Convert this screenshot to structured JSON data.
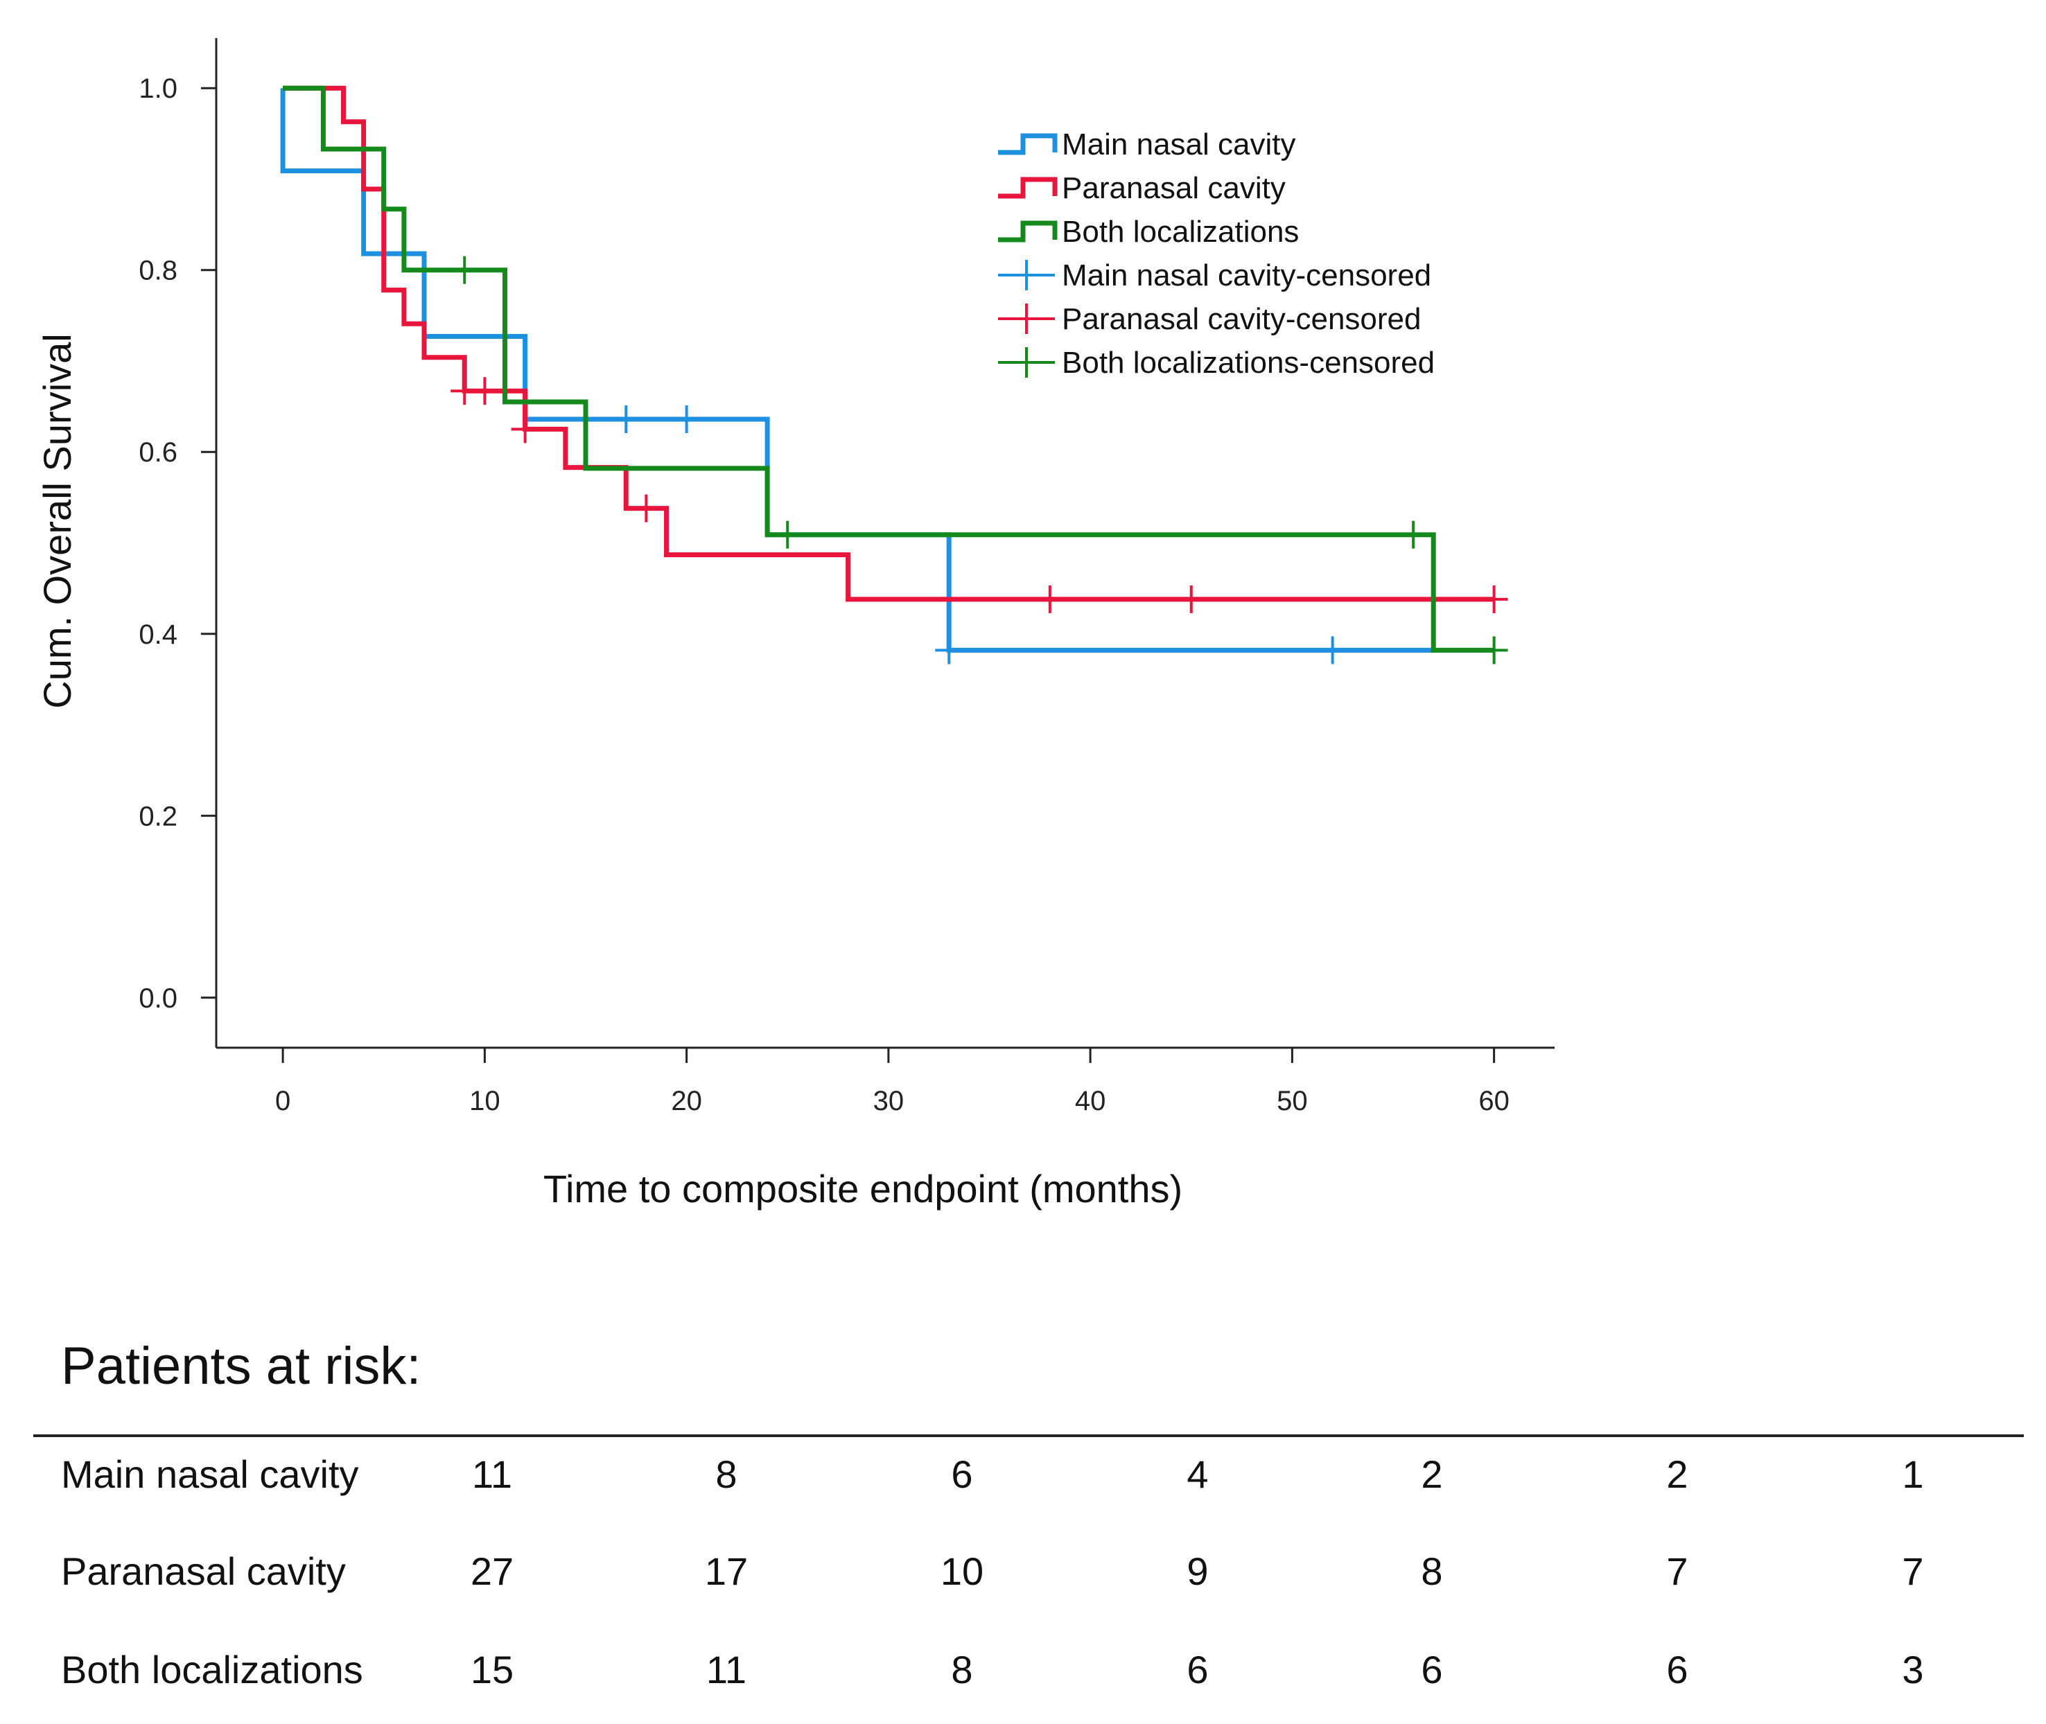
{
  "chart_data": {
    "type": "line",
    "style": "kaplan-meier step",
    "xlabel": "Time to composite endpoint (months)",
    "ylabel": "Cum. Overall Survival",
    "xlim": [
      -3.3,
      63
    ],
    "ylim": [
      -0.055,
      1.055
    ],
    "x_ticks": [
      "0",
      "10",
      "20",
      "30",
      "40",
      "50",
      "60"
    ],
    "y_ticks": [
      "0.0",
      "0.2",
      "0.4",
      "0.6",
      "0.8",
      "1.0"
    ],
    "grid": false,
    "legend_position": "top-right",
    "series": [
      {
        "name": "Main nasal cavity",
        "color": "#1e90e0",
        "steps": [
          [
            0,
            1.0
          ],
          [
            0,
            0.909
          ],
          [
            4,
            0.909
          ],
          [
            4,
            0.818
          ],
          [
            7,
            0.818
          ],
          [
            7,
            0.727
          ],
          [
            12,
            0.727
          ],
          [
            12,
            0.636
          ],
          [
            24,
            0.636
          ],
          [
            24,
            0.509
          ],
          [
            33,
            0.509
          ],
          [
            33,
            0.382
          ],
          [
            57,
            0.382
          ]
        ],
        "censored": [
          [
            17,
            0.636
          ],
          [
            20,
            0.636
          ],
          [
            33,
            0.382
          ],
          [
            52,
            0.382
          ]
        ]
      },
      {
        "name": "Paranasal cavity",
        "color": "#e8163c",
        "steps": [
          [
            0,
            1.0
          ],
          [
            3,
            1.0
          ],
          [
            3,
            0.963
          ],
          [
            4,
            0.963
          ],
          [
            4,
            0.889
          ],
          [
            5,
            0.889
          ],
          [
            5,
            0.778
          ],
          [
            6,
            0.778
          ],
          [
            6,
            0.741
          ],
          [
            7,
            0.741
          ],
          [
            7,
            0.704
          ],
          [
            9,
            0.704
          ],
          [
            9,
            0.667
          ],
          [
            12,
            0.667
          ],
          [
            12,
            0.625
          ],
          [
            14,
            0.625
          ],
          [
            14,
            0.583
          ],
          [
            17,
            0.583
          ],
          [
            17,
            0.538
          ],
          [
            19,
            0.538
          ],
          [
            19,
            0.487
          ],
          [
            28,
            0.487
          ],
          [
            28,
            0.438
          ],
          [
            60,
            0.438
          ]
        ],
        "censored": [
          [
            9,
            0.667
          ],
          [
            10,
            0.667
          ],
          [
            12,
            0.625
          ],
          [
            18,
            0.538
          ],
          [
            38,
            0.438
          ],
          [
            45,
            0.438
          ],
          [
            60,
            0.438
          ]
        ]
      },
      {
        "name": "Both localizations",
        "color": "#158a1c",
        "steps": [
          [
            0,
            1.0
          ],
          [
            2,
            1.0
          ],
          [
            2,
            0.933
          ],
          [
            5,
            0.933
          ],
          [
            5,
            0.867
          ],
          [
            6,
            0.867
          ],
          [
            6,
            0.8
          ],
          [
            11,
            0.8
          ],
          [
            11,
            0.655
          ],
          [
            15,
            0.655
          ],
          [
            15,
            0.582
          ],
          [
            24,
            0.582
          ],
          [
            24,
            0.509
          ],
          [
            57,
            0.509
          ],
          [
            57,
            0.382
          ],
          [
            60,
            0.382
          ]
        ],
        "censored": [
          [
            9,
            0.8
          ],
          [
            25,
            0.509
          ],
          [
            56,
            0.509
          ],
          [
            60,
            0.382
          ]
        ]
      }
    ],
    "legend": [
      {
        "label": "Main nasal cavity",
        "color": "#1e90e0",
        "kind": "step"
      },
      {
        "label": "Paranasal  cavity",
        "color": "#e8163c",
        "kind": "step"
      },
      {
        "label": "Both  localizations",
        "color": "#158a1c",
        "kind": "step"
      },
      {
        "label": "Main nasal cavity-censored",
        "color": "#1e90e0",
        "kind": "cross"
      },
      {
        "label": "Paranasal  cavity-censored",
        "color": "#e8163c",
        "kind": "cross"
      },
      {
        "label": "Both  localizations-censored",
        "color": "#158a1c",
        "kind": "cross"
      }
    ]
  },
  "risk_table": {
    "title": "Patients at risk:",
    "rows": [
      {
        "label": "Main nasal cavity",
        "values": [
          "11",
          "8",
          "6",
          "4",
          "2",
          "2",
          "1"
        ]
      },
      {
        "label": "Paranasal cavity",
        "values": [
          "27",
          "17",
          "10",
          "9",
          "8",
          "7",
          "7"
        ]
      },
      {
        "label": "Both localizations",
        "values": [
          "15",
          "11",
          "8",
          "6",
          "6",
          "6",
          "3"
        ]
      }
    ]
  }
}
